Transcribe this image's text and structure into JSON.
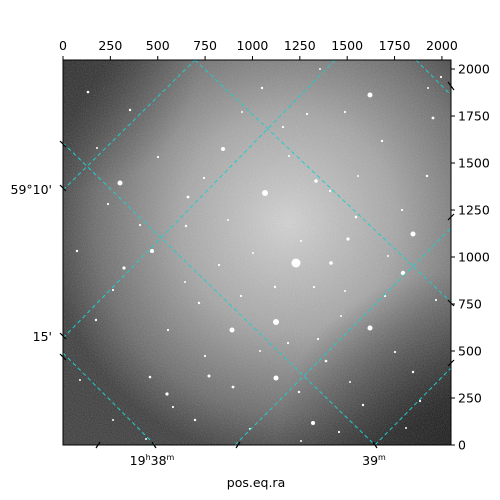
{
  "chart_data": {
    "type": "image",
    "colormap": "grayscale",
    "pixel_axes": {
      "x_ticks": [
        0,
        250,
        500,
        750,
        1000,
        1250,
        1500,
        1750,
        2000
      ],
      "y_ticks": [
        0,
        250,
        500,
        750,
        1000,
        1250,
        1500,
        1750,
        2000
      ],
      "xlim": [
        0,
        2048
      ],
      "ylim": [
        0,
        2048
      ]
    },
    "world_axes": {
      "xlabel": "pos.eq.ra",
      "x_ticks": [
        {
          "hour": "19",
          "hour_unit": "h",
          "minute": "38",
          "minute_unit": "m"
        },
        {
          "hour": "",
          "hour_unit": "",
          "minute": "39",
          "minute_unit": "m"
        }
      ],
      "y_ticks": [
        "59°10'",
        "15'"
      ]
    },
    "grid": {
      "on": true,
      "color": "#22cccc",
      "style": "dashed"
    },
    "colors": {
      "grid": "#22cccc",
      "frame": "#000000",
      "background": "#ffffff"
    }
  }
}
